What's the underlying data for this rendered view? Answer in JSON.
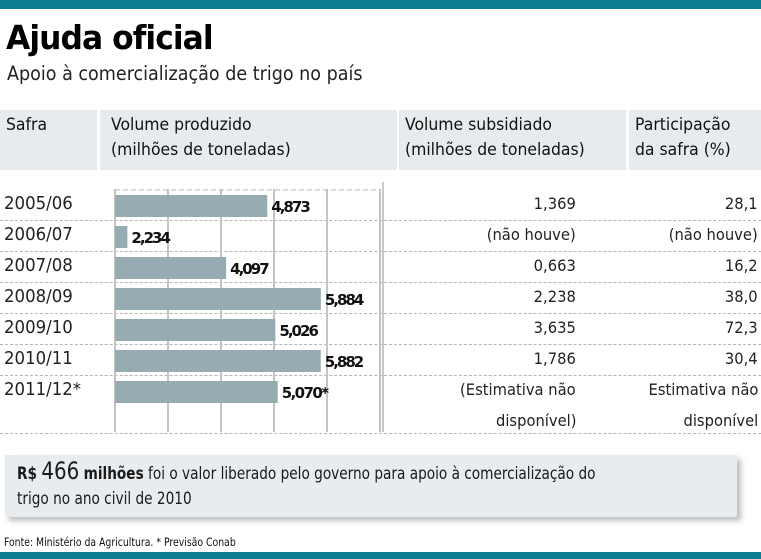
{
  "header": {
    "title": "Ajuda oficial",
    "subtitle": "Apoio à comercialização de trigo no país"
  },
  "columns": {
    "safra": "Safra",
    "volume_produzido": [
      "Volume produzido",
      "(milhões de toneladas)"
    ],
    "volume_subsidiado": [
      "Volume subsidiado",
      "(milhões de toneladas)"
    ],
    "participacao": [
      "Participação",
      "da safra (%)"
    ]
  },
  "rows": [
    {
      "safra": "2005/06",
      "produzido_label": "4,873",
      "subsidiado": [
        "1,369"
      ],
      "participacao": [
        "28,1"
      ]
    },
    {
      "safra": "2006/07",
      "produzido_label": "2,234",
      "subsidiado": [
        "(não houve)"
      ],
      "participacao": [
        "(não houve)"
      ]
    },
    {
      "safra": "2007/08",
      "produzido_label": "4,097",
      "subsidiado": [
        "0,663"
      ],
      "participacao": [
        "16,2"
      ]
    },
    {
      "safra": "2008/09",
      "produzido_label": "5,884",
      "subsidiado": [
        "2,238"
      ],
      "participacao": [
        "38,0"
      ]
    },
    {
      "safra": "2009/10",
      "produzido_label": "5,026",
      "subsidiado": [
        "3,635"
      ],
      "participacao": [
        "72,3"
      ]
    },
    {
      "safra": "2010/11",
      "produzido_label": "5,882",
      "subsidiado": [
        "1,786"
      ],
      "participacao": [
        "30,4"
      ]
    },
    {
      "safra": "2011/12*",
      "produzido_label": "5,070*",
      "subsidiado": [
        "(Estimativa não",
        "disponível)"
      ],
      "participacao": [
        "Estimativa não",
        "disponível"
      ]
    }
  ],
  "chart_data": {
    "type": "bar",
    "orientation": "horizontal",
    "title": "Volume produzido (milhões de toneladas)",
    "categories": [
      "2005/06",
      "2006/07",
      "2007/08",
      "2008/09",
      "2009/10",
      "2010/11",
      "2011/12*"
    ],
    "values": [
      4.873,
      2.234,
      4.097,
      5.884,
      5.026,
      5.882,
      5.07
    ],
    "xlim": [
      2,
      7
    ],
    "grid": true,
    "gridlines": [
      2,
      3,
      4,
      5,
      6,
      7
    ],
    "bar_color": "#97acb2"
  },
  "callout": {
    "prefix": "R$",
    "amount": "466",
    "unit": "milhões",
    "text_line1": " foi o valor liberado pelo governo para apoio à comercialização do",
    "text_line2": "trigo no ano civil de 2010"
  },
  "source": "Fonte: Ministério da Agricultura. * Previsão Conab",
  "colors": {
    "accent": "#0c7d92",
    "header_bg": "#e6ebee",
    "bar": "#97acb2"
  }
}
